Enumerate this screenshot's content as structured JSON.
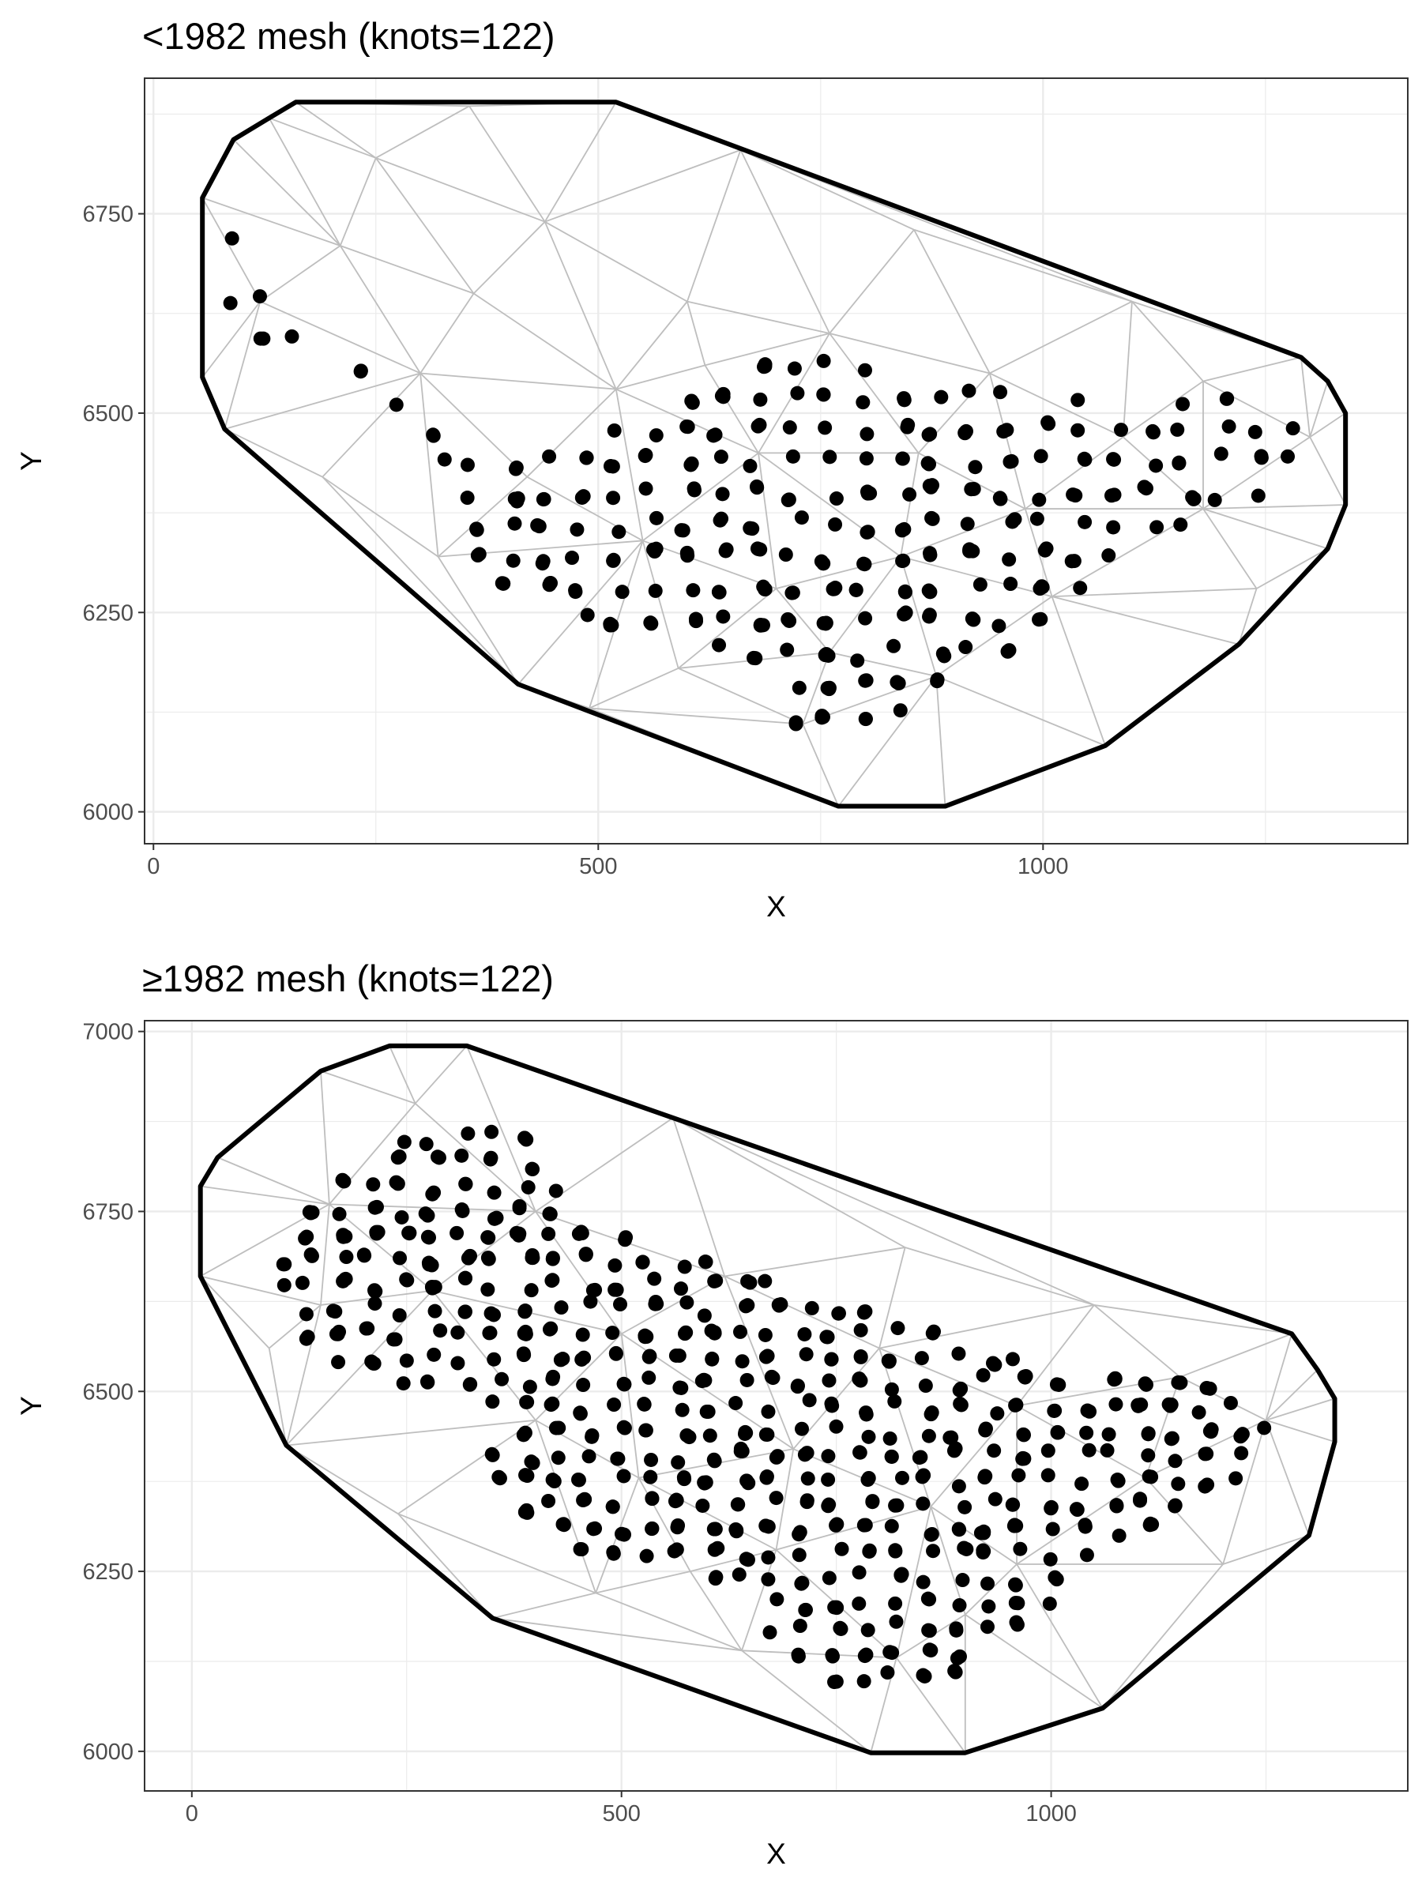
{
  "chart_data": [
    {
      "type": "scatter",
      "subtype": "triangulation-mesh",
      "title": "<1982 mesh (knots=122)",
      "xlabel": "X",
      "ylabel": "Y",
      "xlim": [
        -10,
        1410
      ],
      "ylim": [
        5960,
        6920
      ],
      "x_ticks": [
        0,
        500,
        1000
      ],
      "x_tick_labels": [
        "0",
        "500",
        "1000"
      ],
      "y_ticks": [
        6000,
        6250,
        6500,
        6750
      ],
      "y_tick_labels": [
        "6000",
        "6250",
        "6500",
        "6750"
      ],
      "grid": true,
      "legend": "none",
      "point_color": "#000000",
      "mesh_color": "#bebebe",
      "boundary_color": "#000000",
      "region_outline": [
        [
          80,
          6760
        ],
        [
          80,
          6620
        ],
        [
          130,
          6560
        ],
        [
          250,
          6580
        ],
        [
          320,
          6480
        ],
        [
          420,
          6440
        ],
        [
          520,
          6480
        ],
        [
          600,
          6520
        ],
        [
          700,
          6570
        ],
        [
          820,
          6560
        ],
        [
          920,
          6540
        ],
        [
          1020,
          6520
        ],
        [
          1130,
          6520
        ],
        [
          1230,
          6520
        ],
        [
          1285,
          6500
        ],
        [
          1285,
          6420
        ],
        [
          1230,
          6380
        ],
        [
          1130,
          6330
        ],
        [
          1020,
          6230
        ],
        [
          930,
          6160
        ],
        [
          830,
          6120
        ],
        [
          760,
          6080
        ],
        [
          690,
          6140
        ],
        [
          650,
          6190
        ],
        [
          590,
          6220
        ],
        [
          500,
          6230
        ],
        [
          400,
          6270
        ],
        [
          350,
          6310
        ],
        [
          340,
          6420
        ],
        [
          260,
          6520
        ],
        [
          160,
          6600
        ],
        [
          110,
          6680
        ]
      ],
      "boundary": [
        [
          160,
          6890
        ],
        [
          520,
          6890
        ],
        [
          1290,
          6570
        ],
        [
          1320,
          6540
        ],
        [
          1340,
          6500
        ],
        [
          1340,
          6385
        ],
        [
          1320,
          6330
        ],
        [
          1220,
          6210
        ],
        [
          1070,
          6083
        ],
        [
          890,
          6007
        ],
        [
          770,
          6007
        ],
        [
          410,
          6160
        ],
        [
          80,
          6480
        ],
        [
          55,
          6545
        ],
        [
          55,
          6770
        ],
        [
          90,
          6843
        ],
        [
          130,
          6870
        ]
      ],
      "mesh_nodes": [
        [
          160,
          6890
        ],
        [
          520,
          6890
        ],
        [
          1290,
          6570
        ],
        [
          1320,
          6540
        ],
        [
          1340,
          6500
        ],
        [
          1340,
          6385
        ],
        [
          1320,
          6330
        ],
        [
          1220,
          6210
        ],
        [
          1070,
          6083
        ],
        [
          890,
          6007
        ],
        [
          770,
          6007
        ],
        [
          410,
          6160
        ],
        [
          80,
          6480
        ],
        [
          55,
          6545
        ],
        [
          55,
          6770
        ],
        [
          90,
          6843
        ],
        [
          130,
          6870
        ],
        [
          355,
          6885
        ],
        [
          660,
          6830
        ],
        [
          855,
          6730
        ],
        [
          1100,
          6640
        ],
        [
          1300,
          6470
        ],
        [
          1180,
          6380
        ],
        [
          1010,
          6270
        ],
        [
          880,
          6170
        ],
        [
          730,
          6110
        ],
        [
          590,
          6180
        ],
        [
          490,
          6130
        ],
        [
          320,
          6320
        ],
        [
          190,
          6420
        ],
        [
          120,
          6640
        ],
        [
          250,
          6820
        ],
        [
          440,
          6740
        ],
        [
          600,
          6640
        ],
        [
          760,
          6600
        ],
        [
          940,
          6550
        ],
        [
          1090,
          6470
        ],
        [
          980,
          6380
        ],
        [
          840,
          6320
        ],
        [
          700,
          6280
        ],
        [
          550,
          6340
        ],
        [
          420,
          6420
        ],
        [
          300,
          6550
        ],
        [
          210,
          6710
        ],
        [
          360,
          6650
        ],
        [
          520,
          6530
        ],
        [
          680,
          6450
        ],
        [
          860,
          6450
        ],
        [
          1180,
          6540
        ],
        [
          1240,
          6280
        ],
        [
          760,
          6200
        ],
        [
          620,
          6560
        ]
      ],
      "sample_counts_note": "dots drawn from the region outline"
    },
    {
      "type": "scatter",
      "subtype": "triangulation-mesh",
      "title": "≥1982 mesh (knots=122)",
      "xlabel": "X",
      "ylabel": "Y",
      "xlim": [
        -55,
        1415
      ],
      "ylim": [
        5945,
        7015
      ],
      "x_ticks": [
        0,
        500,
        1000
      ],
      "x_tick_labels": [
        "0",
        "500",
        "1000"
      ],
      "y_ticks": [
        6000,
        6250,
        6500,
        6750,
        7000
      ],
      "y_tick_labels": [
        "6000",
        "6250",
        "6500",
        "6750",
        "7000"
      ],
      "grid": true,
      "legend": "none",
      "point_color": "#000000",
      "mesh_color": "#bebebe",
      "boundary_color": "#000000",
      "region_outline": [
        [
          110,
          6750
        ],
        [
          150,
          6780
        ],
        [
          200,
          6810
        ],
        [
          260,
          6880
        ],
        [
          380,
          6880
        ],
        [
          440,
          6780
        ],
        [
          480,
          6720
        ],
        [
          560,
          6700
        ],
        [
          640,
          6690
        ],
        [
          720,
          6640
        ],
        [
          840,
          6600
        ],
        [
          920,
          6560
        ],
        [
          1040,
          6520
        ],
        [
          1160,
          6520
        ],
        [
          1240,
          6500
        ],
        [
          1260,
          6420
        ],
        [
          1170,
          6330
        ],
        [
          1080,
          6290
        ],
        [
          1000,
          6200
        ],
        [
          930,
          6140
        ],
        [
          870,
          6070
        ],
        [
          760,
          6090
        ],
        [
          690,
          6130
        ],
        [
          660,
          6180
        ],
        [
          600,
          6250
        ],
        [
          500,
          6270
        ],
        [
          400,
          6290
        ],
        [
          350,
          6350
        ],
        [
          350,
          6450
        ],
        [
          280,
          6500
        ],
        [
          200,
          6520
        ],
        [
          120,
          6560
        ],
        [
          100,
          6680
        ]
      ],
      "boundary": [
        [
          230,
          6980
        ],
        [
          320,
          6980
        ],
        [
          1280,
          6580
        ],
        [
          1310,
          6530
        ],
        [
          1330,
          6490
        ],
        [
          1330,
          6430
        ],
        [
          1300,
          6300
        ],
        [
          1060,
          6060
        ],
        [
          900,
          5998
        ],
        [
          790,
          5998
        ],
        [
          350,
          6185
        ],
        [
          110,
          6425
        ],
        [
          10,
          6660
        ],
        [
          10,
          6785
        ],
        [
          30,
          6825
        ],
        [
          150,
          6945
        ]
      ],
      "mesh_nodes": [
        [
          230,
          6980
        ],
        [
          320,
          6980
        ],
        [
          1280,
          6580
        ],
        [
          1310,
          6530
        ],
        [
          1330,
          6490
        ],
        [
          1330,
          6430
        ],
        [
          1300,
          6300
        ],
        [
          1060,
          6060
        ],
        [
          900,
          5998
        ],
        [
          790,
          5998
        ],
        [
          350,
          6185
        ],
        [
          110,
          6425
        ],
        [
          10,
          6660
        ],
        [
          10,
          6785
        ],
        [
          30,
          6825
        ],
        [
          150,
          6945
        ],
        [
          260,
          6900
        ],
        [
          560,
          6880
        ],
        [
          830,
          6700
        ],
        [
          1050,
          6620
        ],
        [
          1250,
          6460
        ],
        [
          1110,
          6380
        ],
        [
          960,
          6260
        ],
        [
          820,
          6130
        ],
        [
          640,
          6140
        ],
        [
          470,
          6220
        ],
        [
          240,
          6330
        ],
        [
          90,
          6560
        ],
        [
          160,
          6760
        ],
        [
          400,
          6750
        ],
        [
          620,
          6660
        ],
        [
          800,
          6560
        ],
        [
          960,
          6480
        ],
        [
          860,
          6340
        ],
        [
          680,
          6280
        ],
        [
          520,
          6380
        ],
        [
          400,
          6460
        ],
        [
          280,
          6640
        ],
        [
          150,
          6620
        ],
        [
          500,
          6580
        ],
        [
          700,
          6420
        ],
        [
          1150,
          6520
        ],
        [
          1200,
          6260
        ],
        [
          900,
          6190
        ],
        [
          580,
          6250
        ]
      ],
      "sample_counts_note": "dots drawn from the region outline"
    }
  ]
}
